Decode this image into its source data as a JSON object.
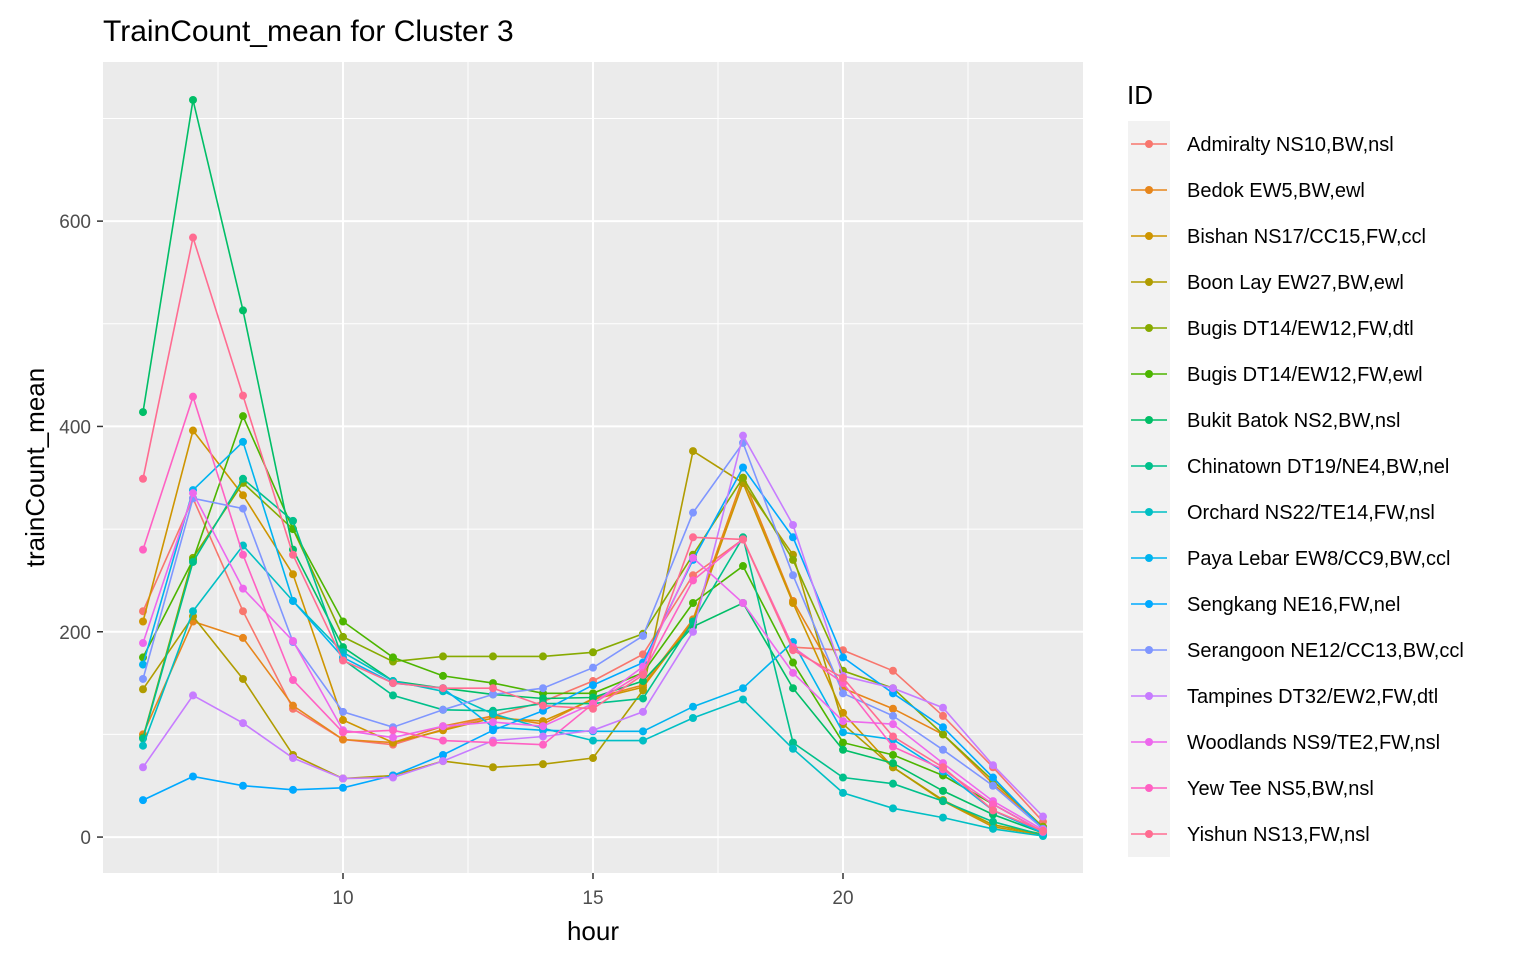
{
  "chart_data": {
    "type": "line",
    "title": "TrainCount_mean for Cluster 3",
    "xlabel": "hour",
    "ylabel": "trainCount_mean",
    "xlim": [
      5.2,
      24.8
    ],
    "ylim": [
      -35,
      755
    ],
    "x_ticks": [
      10,
      15,
      20
    ],
    "x_minor": [
      7.5,
      12.5,
      17.5,
      22.5
    ],
    "y_ticks": [
      0,
      200,
      400,
      600
    ],
    "y_minor": [
      100,
      300,
      500,
      700
    ],
    "grid": true,
    "legend": {
      "title": "ID",
      "position": "right"
    },
    "x": [
      6,
      7,
      8,
      9,
      10,
      11,
      12,
      13,
      14,
      15,
      16,
      17,
      18,
      19,
      20,
      21,
      22,
      23,
      24
    ],
    "series": [
      {
        "name": "Admiralty NS10,BW,nsl",
        "color": "#F8766D",
        "values": [
          220,
          330,
          220,
          125,
          95,
          90,
          105,
          118,
          132,
          152,
          178,
          255,
          290,
          185,
          182,
          162,
          118,
          68,
          15
        ]
      },
      {
        "name": "Bedok EW5,BW,ewl",
        "color": "#E7861B",
        "values": [
          100,
          210,
          194,
          128,
          95,
          92,
          108,
          118,
          110,
          135,
          148,
          212,
          350,
          230,
          145,
          125,
          100,
          52,
          10
        ]
      },
      {
        "name": "Bishan NS17/CC15,FW,ccl",
        "color": "#CE9500",
        "values": [
          210,
          396,
          333,
          256,
          114,
          92,
          104,
          116,
          113,
          134,
          146,
          210,
          345,
          228,
          121,
          68,
          35,
          10,
          2
        ]
      },
      {
        "name": "Boon Lay EW27,BW,ewl",
        "color": "#B09C00",
        "values": [
          144,
          215,
          154,
          80,
          57,
          60,
          74,
          68,
          71,
          77,
          143,
          376,
          345,
          275,
          110,
          68,
          36,
          12,
          3
        ]
      },
      {
        "name": "Bugis DT14/EW12,FW,dtl",
        "color": "#87AA00",
        "values": [
          97,
          272,
          345,
          300,
          195,
          171,
          176,
          176,
          176,
          180,
          198,
          275,
          350,
          270,
          162,
          145,
          100,
          55,
          10
        ]
      },
      {
        "name": "Bugis DT14/EW12,FW,ewl",
        "color": "#4CB500",
        "values": [
          175,
          270,
          410,
          300,
          210,
          175,
          157,
          150,
          140,
          140,
          160,
          228,
          264,
          170,
          92,
          80,
          60,
          32,
          5
        ]
      },
      {
        "name": "Bukit Batok NS2,BW,nsl",
        "color": "#00BE67",
        "values": [
          414,
          718,
          513,
          280,
          185,
          152,
          145,
          139,
          135,
          136,
          152,
          205,
          228,
          145,
          85,
          72,
          45,
          22,
          4
        ]
      },
      {
        "name": "Chinatown DT19/NE4,BW,nel",
        "color": "#00C08B",
        "values": [
          96,
          268,
          349,
          308,
          173,
          138,
          124,
          123,
          130,
          130,
          135,
          210,
          292,
          92,
          58,
          52,
          35,
          15,
          2
        ]
      },
      {
        "name": "Orchard NS22/TE14,FW,nsl",
        "color": "#00BFC4",
        "values": [
          89,
          220,
          284,
          230,
          180,
          152,
          142,
          120,
          106,
          94,
          94,
          116,
          134,
          86,
          43,
          28,
          19,
          8,
          1
        ]
      },
      {
        "name": "Paya Lebar EW8/CC9,BW,ccl",
        "color": "#00B4EF",
        "values": [
          168,
          338,
          385,
          230,
          175,
          150,
          145,
          107,
          104,
          103,
          103,
          127,
          145,
          190,
          102,
          95,
          64,
          26,
          4
        ]
      },
      {
        "name": "Sengkang NE16,FW,nel",
        "color": "#00A9FF",
        "values": [
          36,
          59,
          50,
          46,
          48,
          60,
          80,
          104,
          123,
          148,
          170,
          270,
          360,
          292,
          175,
          140,
          107,
          58,
          8
        ]
      },
      {
        "name": "Serangoon NE12/CC13,BW,ccl",
        "color": "#7F96FF",
        "values": [
          154,
          330,
          320,
          190,
          122,
          107,
          124,
          139,
          145,
          165,
          196,
          316,
          384,
          255,
          140,
          118,
          85,
          50,
          8
        ]
      },
      {
        "name": "Tampines DT32/EW2,FW,dtl",
        "color": "#C77CFF",
        "values": [
          68,
          138,
          111,
          77,
          57,
          58,
          74,
          94,
          98,
          104,
          122,
          200,
          391,
          304,
          157,
          145,
          126,
          70,
          20
        ]
      },
      {
        "name": "Woodlands NS9/TE2,FW,nsl",
        "color": "#ED68ED",
        "values": [
          189,
          335,
          242,
          191,
          104,
          97,
          108,
          112,
          108,
          130,
          166,
          272,
          228,
          160,
          113,
          110,
          72,
          35,
          7
        ]
      },
      {
        "name": "Yew Tee NS5,BW,nsl",
        "color": "#FF61C3",
        "values": [
          280,
          429,
          275,
          153,
          102,
          104,
          94,
          92,
          90,
          130,
          160,
          250,
          290,
          185,
          150,
          88,
          66,
          32,
          5
        ]
      },
      {
        "name": "Yishun NS13,FW,nsl",
        "color": "#FF6C91",
        "values": [
          349,
          584,
          430,
          275,
          172,
          150,
          145,
          145,
          128,
          125,
          158,
          292,
          290,
          182,
          155,
          98,
          68,
          26,
          6
        ]
      }
    ]
  }
}
